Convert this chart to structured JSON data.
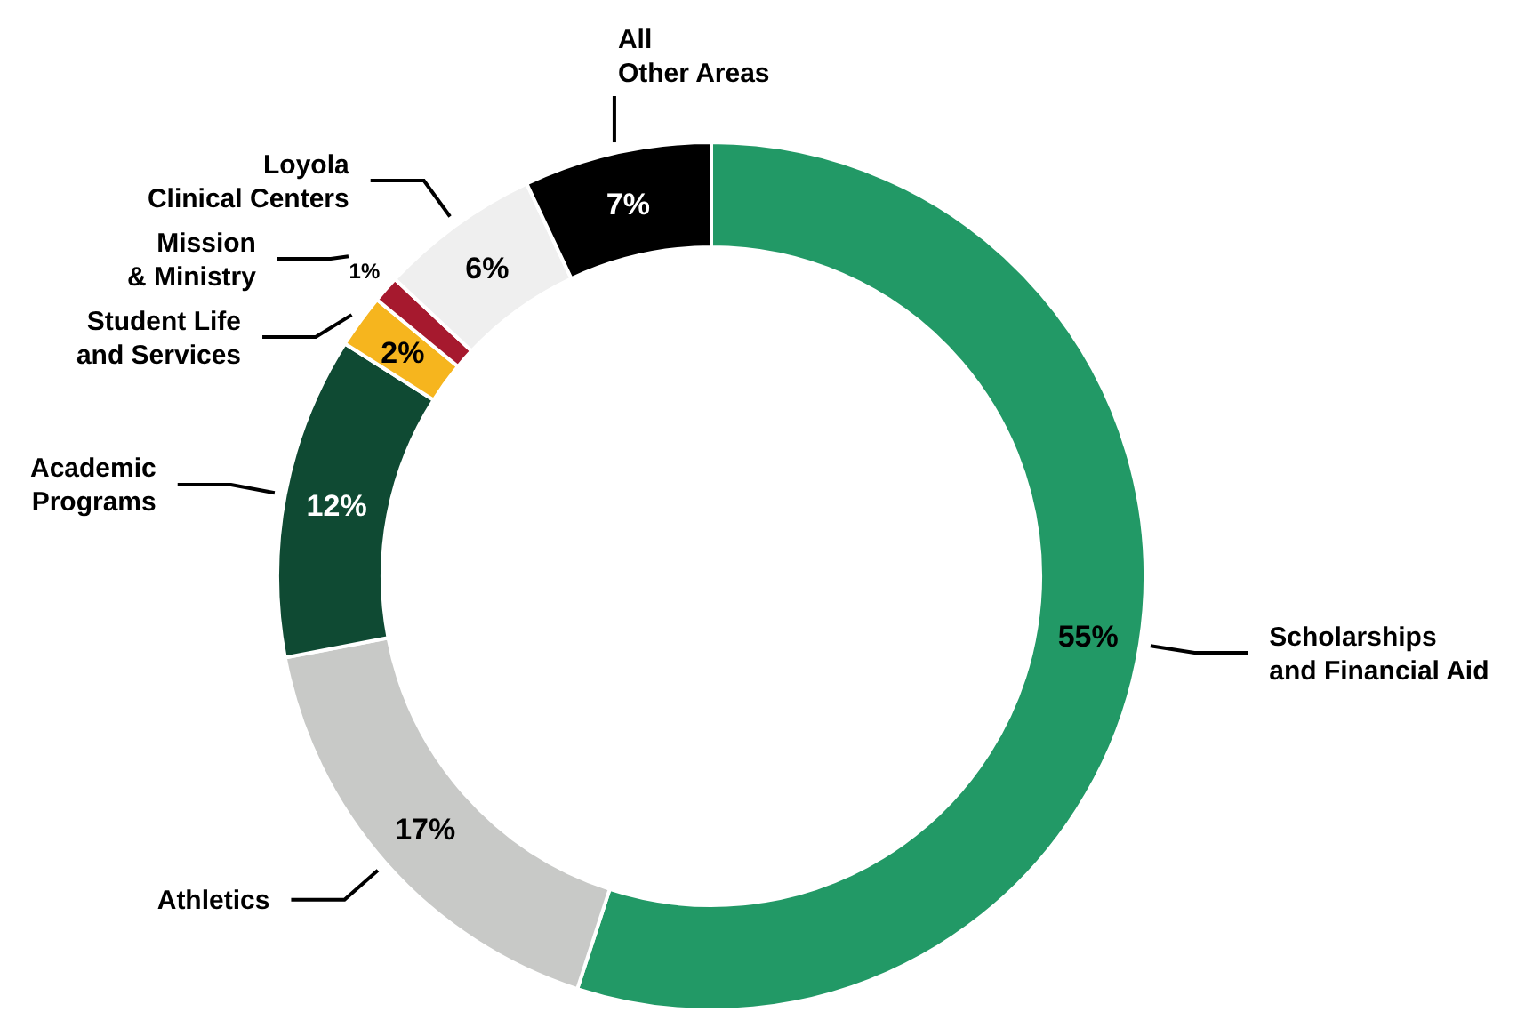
{
  "chart_data": {
    "type": "donut",
    "categories": [
      "Scholarships\nand Financial Aid",
      "Athletics",
      "Academic\nPrograms",
      "Student Life\nand Services",
      "Mission\n& Ministry",
      "Loyola\nClinical Centers",
      "All\nOther Areas"
    ],
    "values": [
      55,
      17,
      12,
      2,
      1,
      6,
      7
    ],
    "value_labels": [
      "55%",
      "17%",
      "12%",
      "2%",
      "1%",
      "6%",
      "7%"
    ],
    "colors": [
      "#229966",
      "#c8c9c7",
      "#0f4a33",
      "#f6b51e",
      "#a6192e",
      "#efefef",
      "#000000"
    ]
  }
}
